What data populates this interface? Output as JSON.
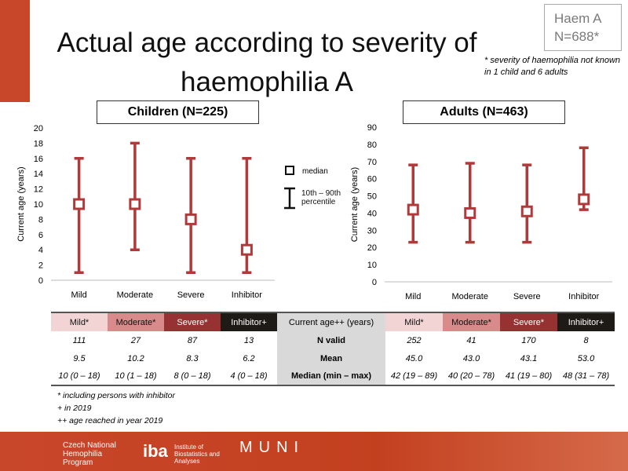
{
  "title_line1": "Actual age according to severity of",
  "title_line2": "haemophilia A",
  "haem_line1": "Haem A",
  "haem_line2": "N=688*",
  "severity_note": "* severity of haemophilia not known in 1 child and 6 adults",
  "legend": {
    "median": "median",
    "percentile": "10th – 90th percentile"
  },
  "chart_data": [
    {
      "type": "boxplot",
      "title": "Children (N=225)",
      "ylabel": "Current age (years)",
      "ylim": [
        0,
        20
      ],
      "yticks": [
        0,
        2,
        4,
        6,
        8,
        10,
        12,
        14,
        16,
        18,
        20
      ],
      "categories": [
        "Mild",
        "Moderate",
        "Severe",
        "Inhibitor"
      ],
      "median": [
        10,
        10,
        8,
        4
      ],
      "p10": [
        1,
        4,
        1,
        1
      ],
      "p90": [
        16,
        18,
        16,
        16
      ]
    },
    {
      "type": "boxplot",
      "title": "Adults (N=463)",
      "ylabel": "Current age (years)",
      "ylim": [
        0,
        90
      ],
      "yticks": [
        0,
        10,
        20,
        30,
        40,
        50,
        60,
        70,
        80,
        90
      ],
      "categories": [
        "Mild",
        "Moderate",
        "Severe",
        "Inhibitor"
      ],
      "median": [
        42,
        40,
        41,
        48
      ],
      "p10": [
        23,
        23,
        23,
        42
      ],
      "p90": [
        68,
        69,
        68,
        78
      ]
    }
  ],
  "table": {
    "headers_left": [
      "Mild*",
      "Moderate*",
      "Severe*",
      "Inhibitor+"
    ],
    "header_mid": "Current age++ (years)",
    "headers_right": [
      "Mild*",
      "Moderate*",
      "Severe*",
      "Inhibitor+"
    ],
    "rows": [
      {
        "label": "N valid",
        "left": [
          "111",
          "27",
          "87",
          "13"
        ],
        "right": [
          "252",
          "41",
          "170",
          "8"
        ]
      },
      {
        "label": "Mean",
        "left": [
          "9.5",
          "10.2",
          "8.3",
          "6.2"
        ],
        "right": [
          "45.0",
          "43.0",
          "43.1",
          "53.0"
        ]
      },
      {
        "label": "Median (min – max)",
        "left": [
          "10 (0 – 18)",
          "10 (1 – 18)",
          "8 (0 – 18)",
          "4 (0 – 18)"
        ],
        "right": [
          "42 (19 – 89)",
          "40 (20 – 78)",
          "41 (19 – 80)",
          "48 (31 – 78)"
        ]
      }
    ]
  },
  "footnotes": [
    "* including persons with inhibitor",
    "+ in 2019",
    "++ age reached in year 2019"
  ],
  "logos": {
    "cnhp": "Czech National Hemophilia Program",
    "iba": "Institute of Biostatistics and Analyses",
    "muni": "MUNI"
  },
  "colors": {
    "mild": "#f2d4d4",
    "moderate": "#d98a8a",
    "severe": "#963232",
    "inhibitor": "#1e1a16",
    "mark": "#b03a3a"
  }
}
